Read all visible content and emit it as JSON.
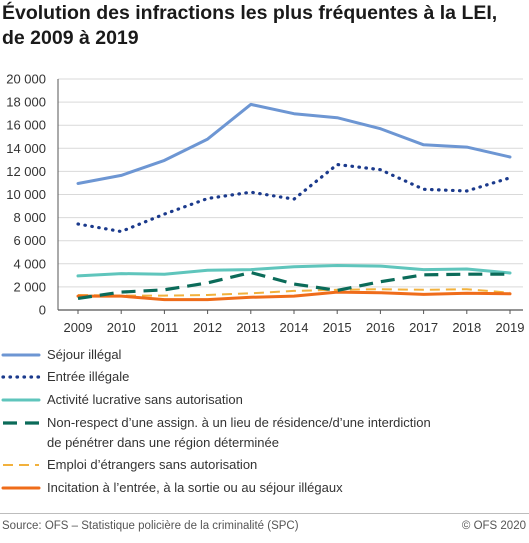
{
  "title_line1": "Évolution des infractions les plus fréquentes à la LEI,",
  "title_line2": "de 2009 à 2019",
  "source": "Source: OFS – Statistique policière de la criminalité (SPC)",
  "copyright": "© OFS 2020",
  "chart_data": {
    "type": "line",
    "title": "Évolution des infractions les plus fréquentes à la LEI, de 2009 à 2019",
    "xlabel": "",
    "ylabel": "",
    "x": [
      "2009",
      "2010",
      "2011",
      "2012",
      "2013",
      "2014",
      "2015",
      "2016",
      "2017",
      "2018",
      "2019"
    ],
    "ylim": [
      0,
      20000
    ],
    "yticks": [
      0,
      2000,
      4000,
      6000,
      8000,
      10000,
      12000,
      14000,
      16000,
      18000,
      20000
    ],
    "ytick_labels": [
      "0",
      "2 000",
      "4 000",
      "6 000",
      "8 000",
      "10 000",
      "12 000",
      "14 000",
      "16 000",
      "18 000",
      "20 000"
    ],
    "grid": true,
    "legend_position": "bottom",
    "series": [
      {
        "name": "Séjour illégal",
        "color": "#6d96d3",
        "style": "solid",
        "values": [
          10950,
          11650,
          12950,
          14800,
          17800,
          17000,
          16650,
          15700,
          14300,
          14100,
          13250
        ]
      },
      {
        "name": "Entrée illégale",
        "color": "#1b3a8c",
        "style": "dotted",
        "values": [
          7450,
          6800,
          8300,
          9650,
          10200,
          9600,
          12600,
          12150,
          10450,
          10300,
          11450
        ]
      },
      {
        "name": "Activité lucrative sans autorisation",
        "color": "#5fc5bc",
        "style": "solid",
        "values": [
          2950,
          3150,
          3100,
          3450,
          3500,
          3750,
          3850,
          3800,
          3500,
          3550,
          3200
        ]
      },
      {
        "name": "Non-respect d’une assign. à un lieu de résidence/d’une interdiction de pénétrer dans une région déterminée",
        "color": "#0b6b59",
        "style": "dashed",
        "values": [
          1000,
          1550,
          1750,
          2350,
          3250,
          2250,
          1700,
          2450,
          3050,
          3100,
          3100
        ]
      },
      {
        "name": "Emploi d’étrangers sans autorisation",
        "color": "#f2b13c",
        "style": "dashed-light",
        "values": [
          1300,
          1250,
          1250,
          1300,
          1450,
          1650,
          1750,
          1800,
          1750,
          1800,
          1500
        ]
      },
      {
        "name": "Incitation à l’entrée, à la sortie ou au séjour illégaux",
        "color": "#ef6c1a",
        "style": "solid",
        "values": [
          1200,
          1200,
          900,
          900,
          1100,
          1200,
          1550,
          1500,
          1350,
          1450,
          1400
        ]
      }
    ]
  }
}
